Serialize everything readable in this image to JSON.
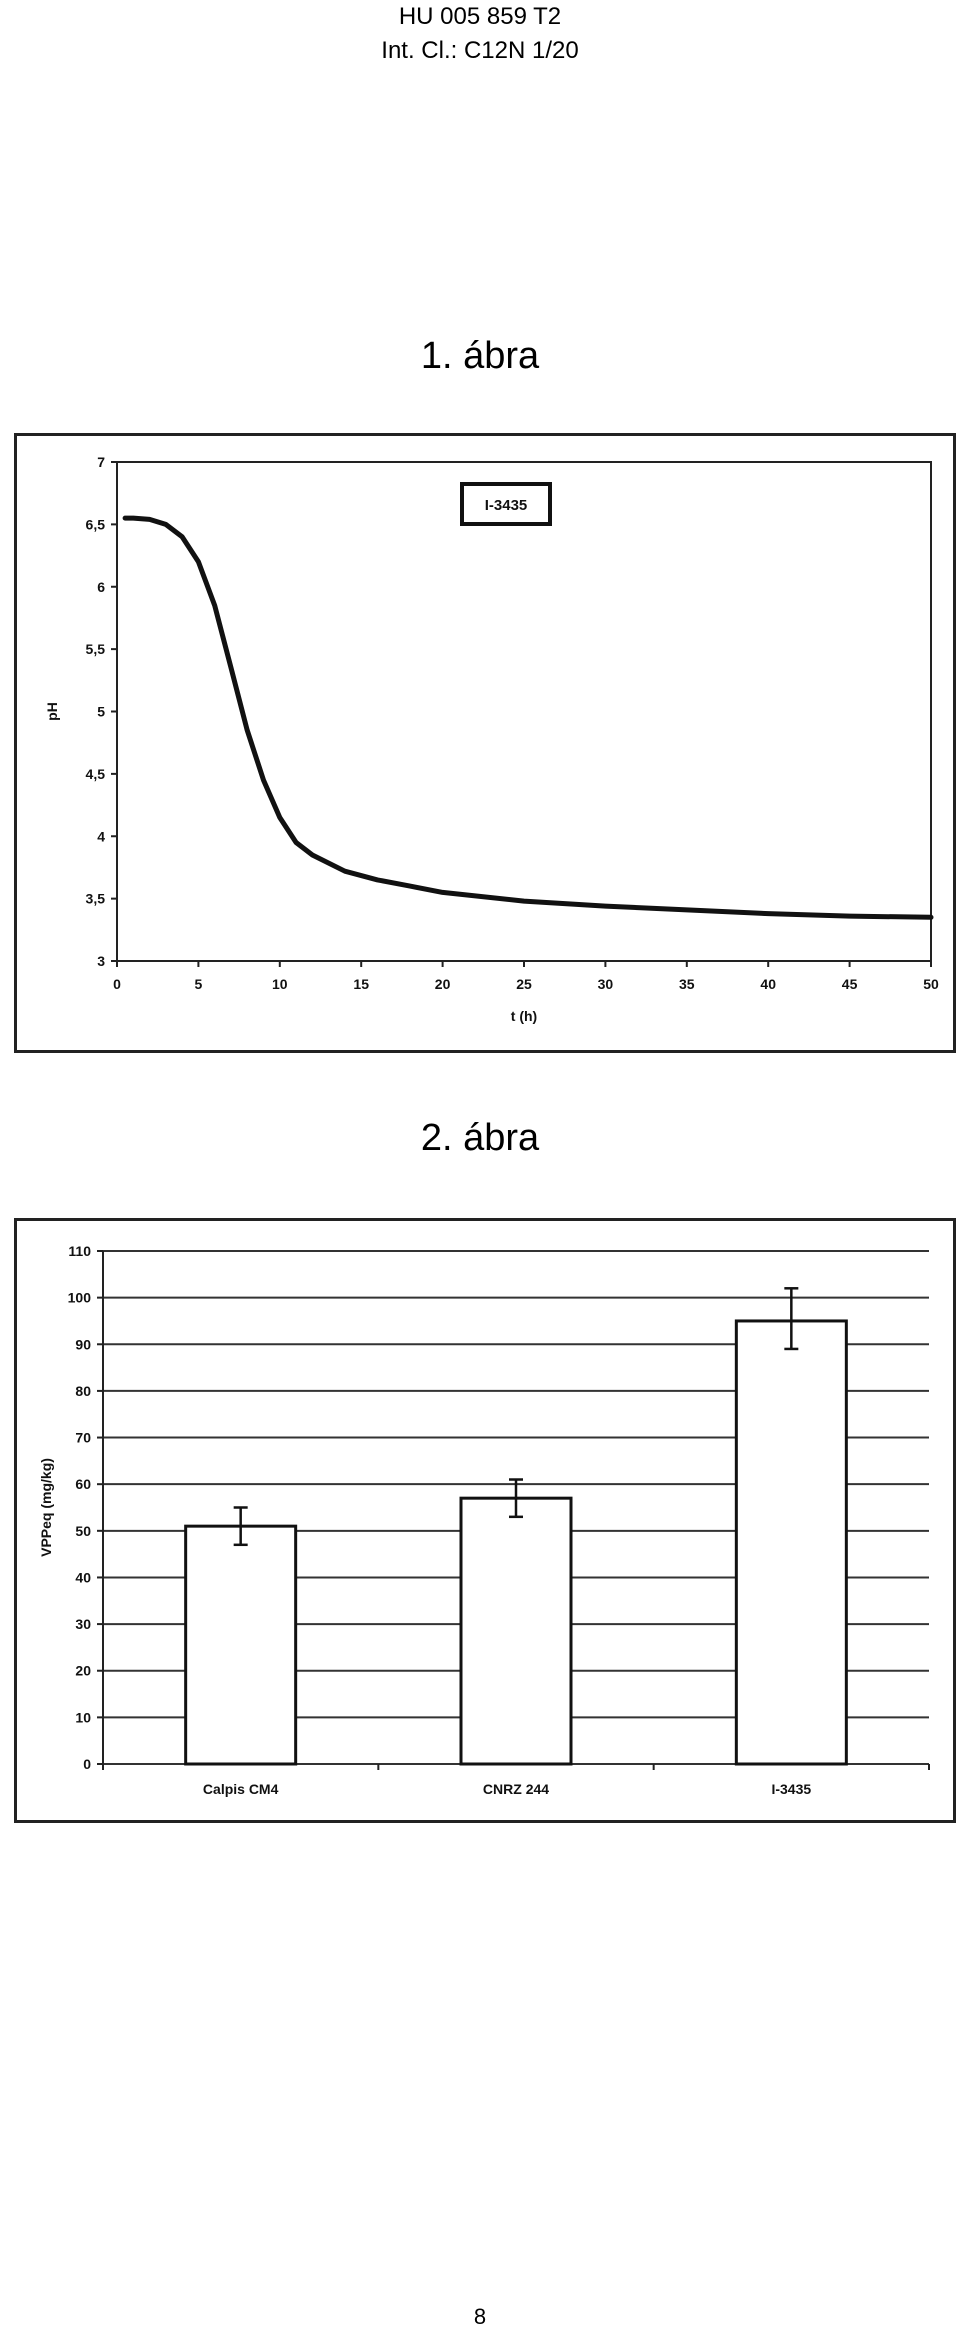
{
  "header": {
    "line1": "HU 005 859 T2",
    "line2": "Int. Cl.: C12N 1/20"
  },
  "figures": {
    "fig1_title": "1. ábra",
    "fig2_title": "2. ábra"
  },
  "page_number": "8",
  "chart_data": [
    {
      "type": "line",
      "title": "",
      "legend": "I-3435",
      "xlabel": "t (h)",
      "ylabel": "pH",
      "xlim": [
        0,
        50
      ],
      "ylim": [
        3,
        7
      ],
      "x_ticks": [
        "0",
        "5",
        "10",
        "15",
        "20",
        "25",
        "30",
        "35",
        "40",
        "45",
        "50"
      ],
      "y_ticks": [
        "3",
        "3,5",
        "4",
        "4,5",
        "5",
        "5,5",
        "6",
        "6,5",
        "7"
      ],
      "grid": false,
      "series": [
        {
          "name": "I-3435",
          "x": [
            0.5,
            1,
            2,
            3,
            4,
            5,
            6,
            7,
            8,
            9,
            10,
            11,
            12,
            14,
            16,
            18,
            20,
            25,
            30,
            35,
            40,
            45,
            50
          ],
          "y": [
            6.55,
            6.55,
            6.54,
            6.5,
            6.4,
            6.2,
            5.85,
            5.35,
            4.85,
            4.45,
            4.15,
            3.95,
            3.85,
            3.72,
            3.65,
            3.6,
            3.55,
            3.48,
            3.44,
            3.41,
            3.38,
            3.36,
            3.35
          ]
        }
      ]
    },
    {
      "type": "bar",
      "title": "",
      "xlabel": "",
      "ylabel": "VPPeq (mg/kg)",
      "ylim": [
        0,
        110
      ],
      "y_ticks": [
        "0",
        "10",
        "20",
        "30",
        "40",
        "50",
        "60",
        "70",
        "80",
        "90",
        "100",
        "110"
      ],
      "grid": true,
      "categories": [
        "Calpis CM4",
        "CNRZ 244",
        "I-3435"
      ],
      "values": [
        51,
        57,
        95
      ],
      "error_low": [
        47,
        53,
        89
      ],
      "error_high": [
        55,
        61,
        102
      ]
    }
  ]
}
